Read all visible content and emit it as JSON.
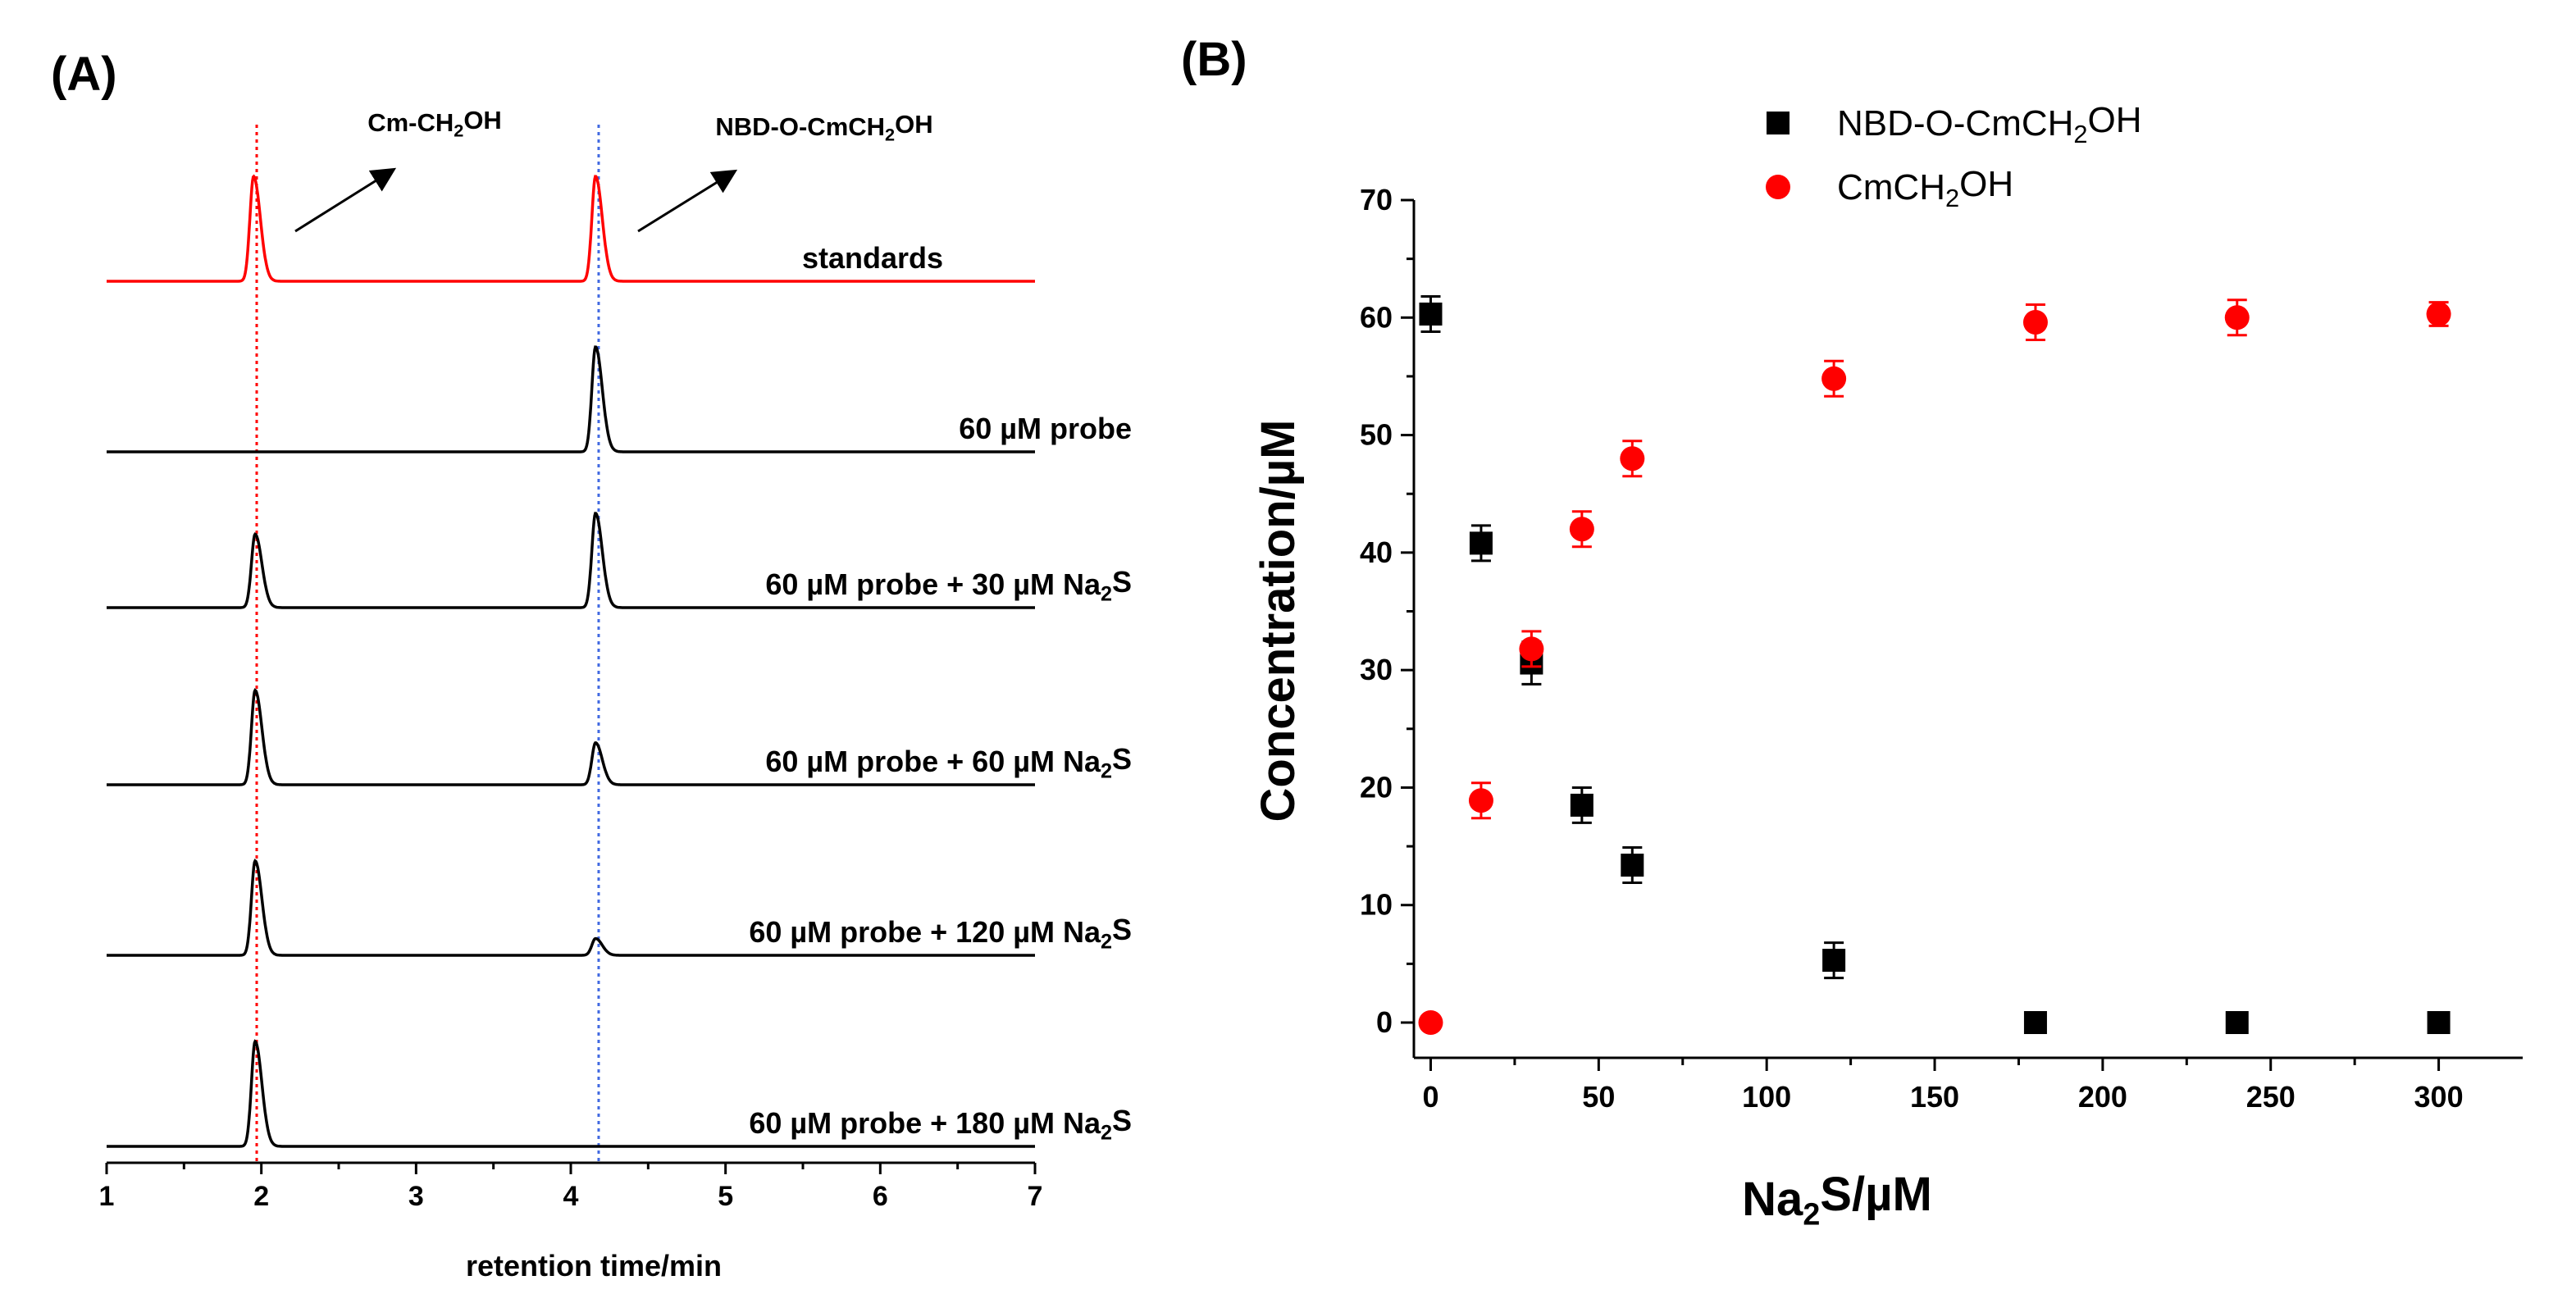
{
  "panels": {
    "a_label": "(A)",
    "b_label": "(B)"
  },
  "chart_data": [
    {
      "id": "A",
      "type": "line",
      "title": "",
      "xlabel": "retention time/min",
      "xlim": [
        1,
        7
      ],
      "xticks": [
        "1",
        "2",
        "3",
        "4",
        "5",
        "6",
        "7"
      ],
      "reference_lines": [
        {
          "x": 1.97,
          "color": "#ff0000",
          "style": "dotted"
        },
        {
          "x": 4.18,
          "color": "#4169e1",
          "style": "dotted"
        }
      ],
      "peak_labels": [
        {
          "text_pre": "Cm-CH",
          "sub": "2",
          "text_post": "OH",
          "x": 2.0
        },
        {
          "text_pre": "NBD-O-CmCH",
          "sub": "2",
          "text_post": "OH",
          "x": 4.18
        }
      ],
      "series": [
        {
          "name": "standards",
          "label_pre": "standards",
          "label_sub": "",
          "label_post": "",
          "color": "#ff0000",
          "peaks": [
            {
              "x": 1.95,
              "h": 1.0
            },
            {
              "x": 4.16,
              "h": 1.0
            }
          ]
        },
        {
          "name": "60 µM probe",
          "label_pre": "60 µM probe",
          "label_sub": "",
          "label_post": "",
          "color": "#000000",
          "peaks": [
            {
              "x": 4.16,
              "h": 1.0
            }
          ]
        },
        {
          "name": "60 µM probe + 30 µM Na2S",
          "label_pre": "60 µM probe + 30 µM Na",
          "label_sub": "2",
          "label_post": "S",
          "color": "#000000",
          "peaks": [
            {
              "x": 1.96,
              "h": 0.7
            },
            {
              "x": 4.16,
              "h": 0.9
            }
          ]
        },
        {
          "name": "60 µM probe + 60 µM Na2S",
          "label_pre": "60 µM probe + 60 µM Na",
          "label_sub": "2",
          "label_post": "S",
          "color": "#000000",
          "peaks": [
            {
              "x": 1.96,
              "h": 0.9
            },
            {
              "x": 4.16,
              "h": 0.4
            }
          ]
        },
        {
          "name": "60 µM probe + 120 µM Na2S",
          "label_pre": "60 µM probe + 120 µM Na",
          "label_sub": "2",
          "label_post": "S",
          "color": "#000000",
          "peaks": [
            {
              "x": 1.96,
              "h": 0.9
            },
            {
              "x": 4.16,
              "h": 0.16
            }
          ]
        },
        {
          "name": "60 µM probe + 180 µM Na2S",
          "label_pre": "60 µM probe + 180 µM Na",
          "label_sub": "2",
          "label_post": "S",
          "color": "#000000",
          "peaks": [
            {
              "x": 1.96,
              "h": 1.0
            }
          ]
        }
      ]
    },
    {
      "id": "B",
      "type": "scatter",
      "title": "",
      "xlabel_pre": "Na",
      "xlabel_sub": "2",
      "xlabel_post": "S/µM",
      "ylabel": "Concentration/µM",
      "xlim": [
        -5,
        325
      ],
      "ylim": [
        -3,
        70
      ],
      "xticks": [
        0,
        50,
        100,
        150,
        200,
        250,
        300
      ],
      "yticks": [
        0,
        10,
        20,
        30,
        40,
        50,
        60,
        70
      ],
      "legend_position": "top-center",
      "series": [
        {
          "name_pre": "NBD-O-CmCH",
          "name_sub": "2",
          "name_post": "OH",
          "marker": "square",
          "color": "#000000",
          "x": [
            0,
            15,
            30,
            45,
            60,
            120,
            180,
            240,
            300
          ],
          "y": [
            60.3,
            40.8,
            30.6,
            18.5,
            13.4,
            5.3,
            0,
            0,
            0
          ],
          "err": [
            1.5,
            1.5,
            1.8,
            1.5,
            1.5,
            1.5,
            0.5,
            0.5,
            0.5
          ]
        },
        {
          "name_pre": "CmCH",
          "name_sub": "2",
          "name_post": "OH",
          "marker": "circle",
          "color": "#ff0000",
          "x": [
            0,
            15,
            30,
            45,
            60,
            120,
            180,
            240,
            300
          ],
          "y": [
            0,
            18.9,
            31.8,
            42,
            48,
            54.8,
            59.6,
            60,
            60.3
          ],
          "err": [
            0.3,
            1.5,
            1.5,
            1.5,
            1.5,
            1.5,
            1.5,
            1.5,
            1.0
          ]
        }
      ]
    }
  ]
}
